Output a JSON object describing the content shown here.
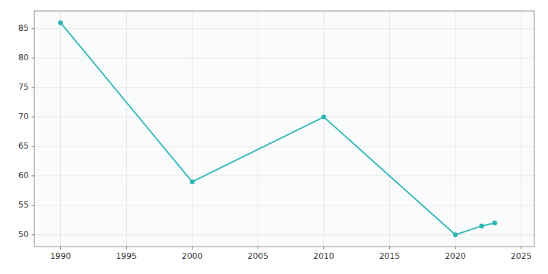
{
  "chart_data": {
    "type": "line",
    "x": [
      1990,
      2000,
      2010,
      2020,
      2022,
      2023
    ],
    "values": [
      86,
      59,
      70,
      50,
      51.5,
      52
    ],
    "color": "#2ab5b0",
    "marker": "circle",
    "xlim": [
      1988,
      2026
    ],
    "ylim": [
      48,
      88
    ],
    "xticks": [
      1990,
      1995,
      2000,
      2005,
      2010,
      2015,
      2020,
      2025
    ],
    "yticks": [
      50,
      55,
      60,
      65,
      70,
      75,
      80,
      85
    ],
    "grid": true
  }
}
